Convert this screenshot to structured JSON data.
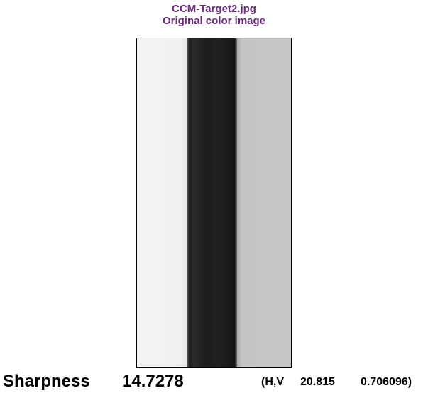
{
  "title": {
    "line1": "CCM-Target2.jpg",
    "line2": "Original color image"
  },
  "image": {
    "bands": [
      {
        "name": "light",
        "color": "#f0f0f0"
      },
      {
        "name": "dark",
        "color": "#1c1c1c"
      },
      {
        "name": "gray",
        "color": "#c6c6c6"
      }
    ]
  },
  "metric": {
    "label": "Sharpness",
    "value": "14.7278",
    "hv_label": "(H,V",
    "h_value": "20.815",
    "v_value": "0.706096)"
  },
  "colors": {
    "title": "#6a2a7a",
    "text": "#000000",
    "background": "#ffffff"
  }
}
